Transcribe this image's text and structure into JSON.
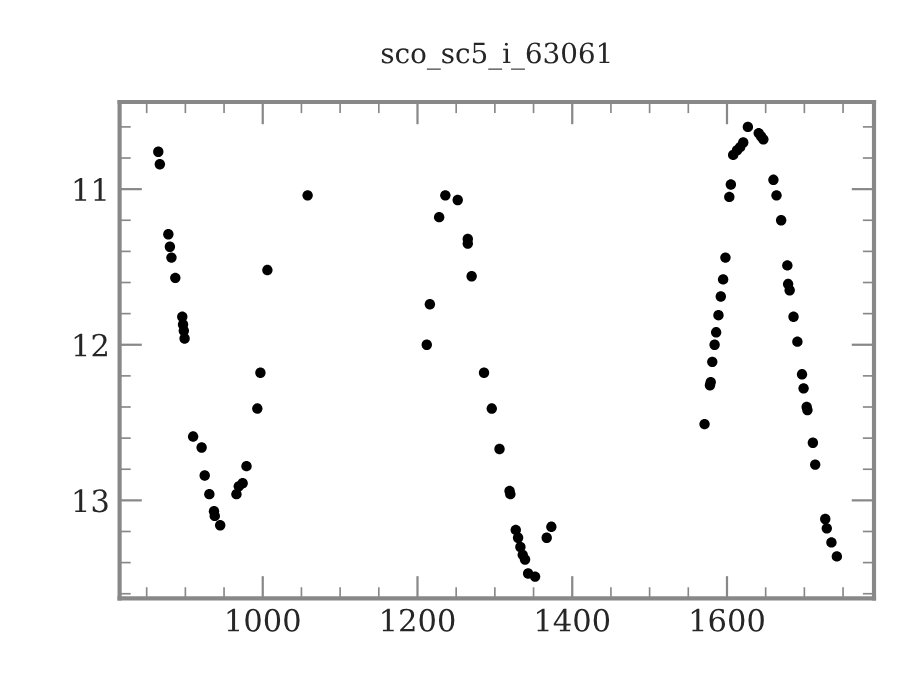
{
  "chart_data": {
    "type": "scatter",
    "title": "sco_sc5_i_63061",
    "x": [
      865,
      867,
      878,
      880,
      882,
      887,
      896,
      897,
      898,
      899,
      910,
      921,
      925,
      931,
      937,
      938,
      945,
      966,
      969,
      974,
      979,
      993,
      997,
      1006,
      1058,
      1212,
      1216,
      1228,
      1236,
      1252,
      1265,
      1265,
      1270,
      1286,
      1296,
      1306,
      1319,
      1320,
      1327,
      1330,
      1333,
      1336,
      1339,
      1343,
      1352,
      1367,
      1373,
      1571,
      1578,
      1579,
      1581,
      1584,
      1586,
      1589,
      1592,
      1595,
      1598,
      1603,
      1605,
      1608,
      1613,
      1617,
      1621,
      1627,
      1641,
      1644,
      1647,
      1660,
      1664,
      1670,
      1678,
      1679,
      1681,
      1686,
      1691,
      1697,
      1699,
      1703,
      1704,
      1711,
      1714,
      1727,
      1729,
      1735,
      1742
    ],
    "values": [
      10.76,
      10.84,
      11.29,
      11.37,
      11.44,
      11.57,
      11.82,
      11.87,
      11.91,
      11.96,
      12.59,
      12.66,
      12.84,
      12.96,
      13.07,
      13.1,
      13.16,
      12.96,
      12.91,
      12.89,
      12.78,
      12.41,
      12.18,
      11.52,
      11.04,
      12.0,
      11.74,
      11.18,
      11.04,
      11.07,
      11.32,
      11.35,
      11.56,
      12.18,
      12.41,
      12.67,
      12.94,
      12.96,
      13.19,
      13.24,
      13.3,
      13.35,
      13.38,
      13.47,
      13.49,
      13.24,
      13.17,
      12.51,
      12.26,
      12.24,
      12.11,
      12.0,
      11.92,
      11.81,
      11.69,
      11.58,
      11.44,
      11.05,
      10.97,
      10.78,
      10.75,
      10.73,
      10.7,
      10.6,
      10.64,
      10.66,
      10.68,
      10.94,
      11.04,
      11.2,
      11.49,
      11.61,
      11.65,
      11.82,
      11.98,
      12.19,
      12.28,
      12.4,
      12.42,
      12.63,
      12.77,
      13.12,
      13.18,
      13.27,
      13.36
    ],
    "color": "#000000",
    "marker": "circle",
    "xlim": [
      815,
      1790
    ],
    "ylim": [
      13.63,
      10.44
    ],
    "xticks": [
      1000,
      1200,
      1400,
      1600
    ],
    "yticks": [
      11,
      12,
      13
    ],
    "grid": false
  }
}
